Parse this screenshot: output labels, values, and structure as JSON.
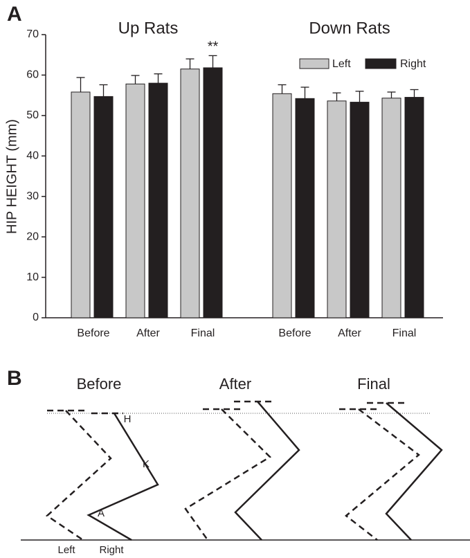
{
  "panel_labels": [
    "A",
    "B"
  ],
  "chart_data": {
    "type": "bar",
    "ylabel": "HIP HEIGHT (mm)",
    "group_titles": [
      "Up Rats",
      "Down Rats"
    ],
    "categories": [
      "Before",
      "After",
      "Final",
      "Before",
      "After",
      "Final"
    ],
    "series": [
      {
        "name": "Left",
        "color": "#c8c8c8",
        "values": [
          55.8,
          57.8,
          61.5,
          55.4,
          53.6,
          54.3
        ],
        "errors": [
          3.6,
          2.1,
          2.5,
          2.2,
          2.0,
          1.5
        ]
      },
      {
        "name": "Right",
        "color": "#231f20",
        "values": [
          54.7,
          58.0,
          61.8,
          54.2,
          53.3,
          54.5
        ],
        "errors": [
          2.9,
          2.3,
          3.0,
          2.8,
          2.7,
          1.9
        ]
      }
    ],
    "annotation": "**",
    "ylim": [
      0,
      70
    ],
    "yticks": [
      0,
      10,
      20,
      30,
      40,
      50,
      60,
      70
    ],
    "legend": "upper right"
  },
  "panel_b": {
    "columns": [
      "Before",
      "After",
      "Final"
    ],
    "leg_labels": [
      "Left",
      "Right"
    ],
    "joint_labels": [
      "H",
      "K",
      "A"
    ]
  }
}
